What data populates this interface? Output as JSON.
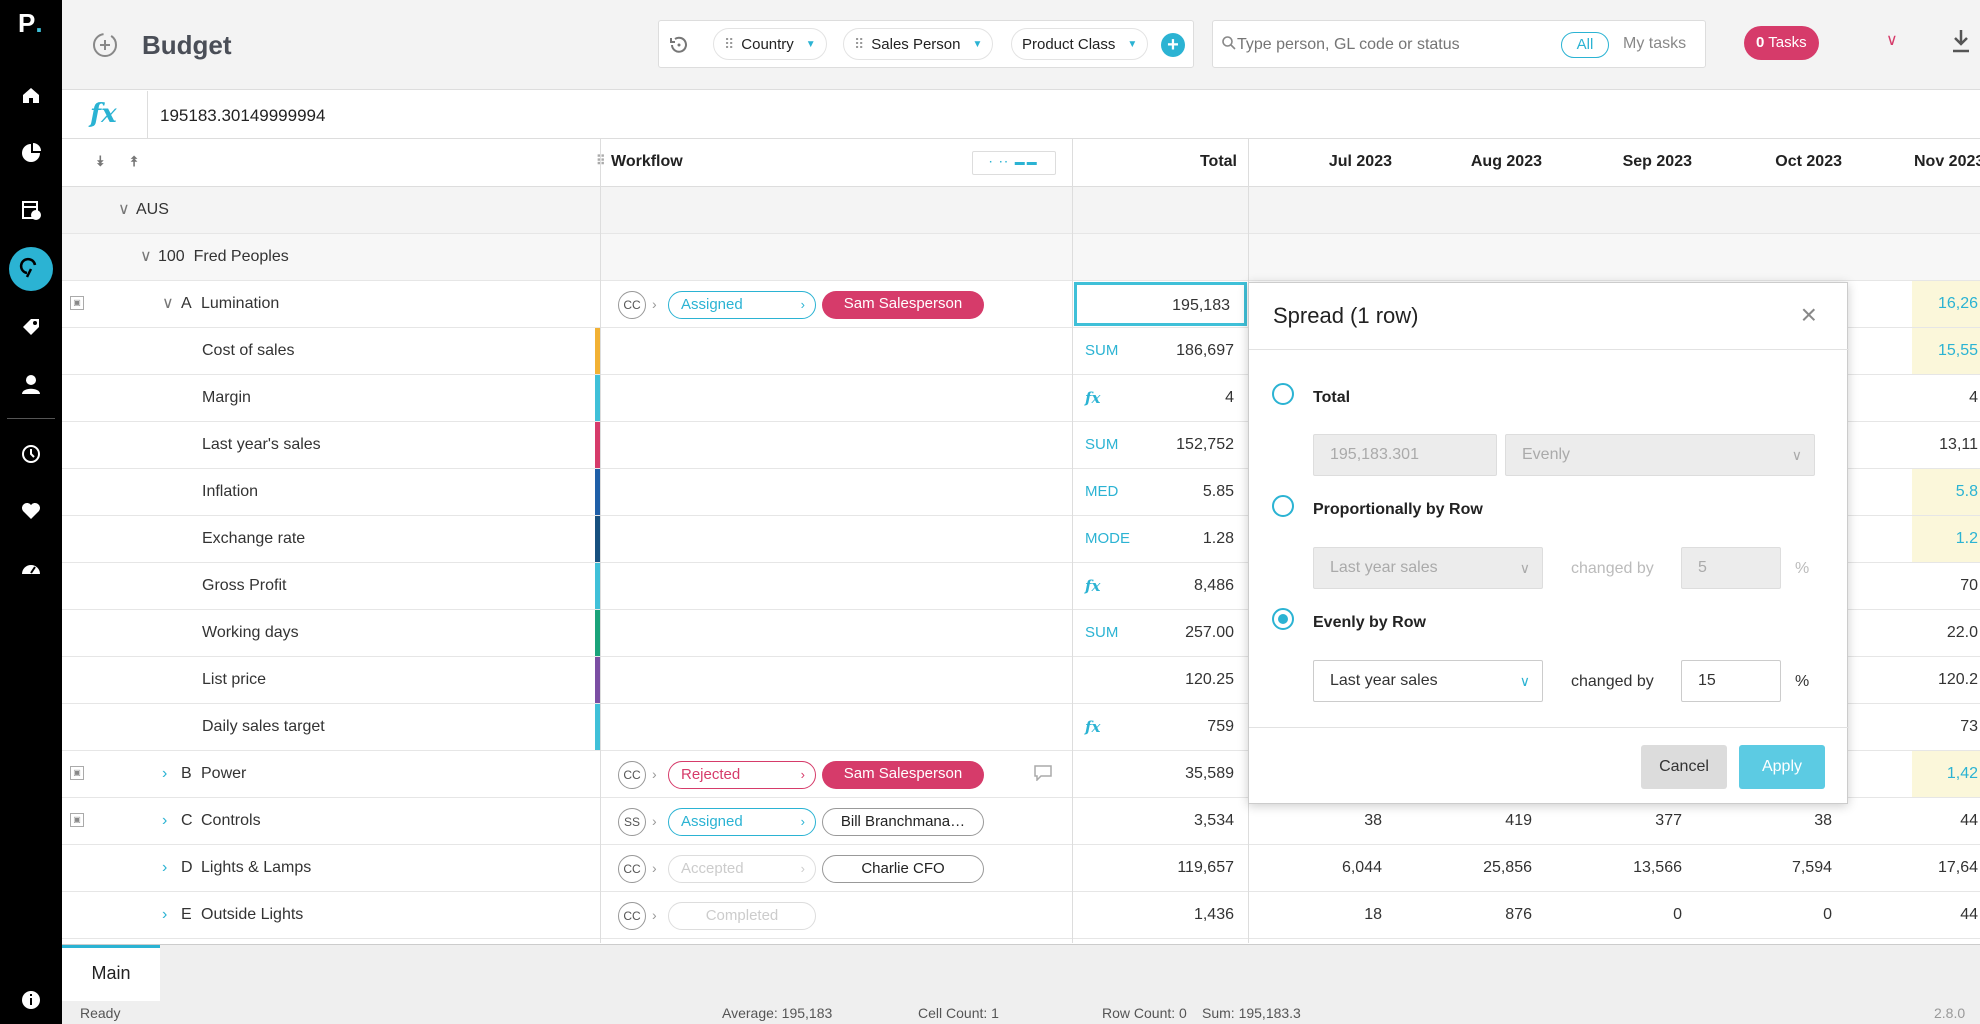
{
  "app": {
    "logo_letter": "P",
    "logo_dot": "."
  },
  "header": {
    "title": "Budget",
    "filters": [
      "Country",
      "Sales Person",
      "Product Class"
    ],
    "search_placeholder": "Type person, GL code or status",
    "all_label": "All",
    "my_tasks_label": "My tasks",
    "tasks_count": "0",
    "tasks_label": "Tasks"
  },
  "formula_bar": {
    "label": "fx",
    "value": "195183.30149999994"
  },
  "grid": {
    "workflow_header": "Workflow",
    "total_header": "Total",
    "months": [
      "Jul 2023",
      "Aug 2023",
      "Sep 2023",
      "Oct 2023",
      "Nov 2023"
    ],
    "groups": [
      {
        "label": "AUS"
      },
      {
        "label": "100  Fred Peoples"
      }
    ],
    "rows": [
      {
        "code": "A",
        "label": "Lumination",
        "agg": "",
        "total": "195,183",
        "cc": "CC",
        "status": "Assigned",
        "person": "Sam Salesperson",
        "nov": "16,26"
      },
      {
        "label": "Cost of sales",
        "agg": "SUM",
        "total": "186,697",
        "bar": "#f2b134",
        "nov": "15,55"
      },
      {
        "label": "Margin",
        "agg": "fx",
        "total": "4",
        "bar": "#3fc0d8",
        "nov": "4"
      },
      {
        "label": "Last year's sales",
        "agg": "SUM",
        "total": "152,752",
        "bar": "#d63b6a",
        "nov": "13,11"
      },
      {
        "label": "Inflation",
        "agg": "MED",
        "total": "5.85",
        "bar": "#1f5fa8",
        "nov": "5.8"
      },
      {
        "label": "Exchange rate",
        "agg": "MODE",
        "total": "1.28",
        "bar": "#17507f",
        "nov": "1.2"
      },
      {
        "label": "Gross Profit",
        "agg": "fx",
        "total": "8,486",
        "bar": "#3fc0d8",
        "nov": "70"
      },
      {
        "label": "Working days",
        "agg": "SUM",
        "total": "257.00",
        "bar": "#1aa37a",
        "nov": "22.0"
      },
      {
        "label": "List price",
        "agg": "",
        "total": "120.25",
        "bar": "#7b4ea3",
        "nov": "120.2"
      },
      {
        "label": "Daily sales target",
        "agg": "fx",
        "total": "759",
        "bar": "#3fc0d8",
        "nov": "73"
      },
      {
        "code": "B",
        "label": "Power",
        "total": "35,589",
        "cc": "CC",
        "status": "Rejected",
        "person": "Sam Salesperson",
        "nov": "1,42"
      },
      {
        "code": "C",
        "label": "Controls",
        "total": "3,534",
        "cc": "SS",
        "status": "Assigned",
        "person": "Bill Branchmana…",
        "jul": "38",
        "aug": "419",
        "sep": "377",
        "oct": "38",
        "nov": "44"
      },
      {
        "code": "D",
        "label": "Lights & Lamps",
        "total": "119,657",
        "cc": "CC",
        "status": "Accepted",
        "person": "Charlie CFO",
        "jul": "6,044",
        "aug": "25,856",
        "sep": "13,566",
        "oct": "7,594",
        "nov": "17,64"
      },
      {
        "code": "E",
        "label": "Outside Lights",
        "total": "1,436",
        "cc": "CC",
        "status": "Completed",
        "person": "",
        "jul": "18",
        "aug": "876",
        "sep": "0",
        "oct": "0",
        "nov": "44"
      }
    ]
  },
  "dialog": {
    "title": "Spread (1 row)",
    "opt_total": "Total",
    "total_value": "195,183.301",
    "total_method": "Evenly",
    "opt_prop": "Proportionally by Row",
    "prop_basis": "Last year sales",
    "changed_by": "changed by",
    "prop_value": "5",
    "pct": "%",
    "opt_even": "Evenly by Row",
    "even_basis": "Last year sales",
    "even_value": "15",
    "cancel": "Cancel",
    "apply": "Apply",
    "selected": "Evenly by Row"
  },
  "footer": {
    "tab": "Main",
    "ready": "Ready",
    "average": "Average: 195,183",
    "cell_count": "Cell Count: 1",
    "row_count": "Row Count: 0",
    "sum": "Sum: 195,183.3",
    "version": "2.8.0"
  },
  "colors": {
    "accent": "#2bb3d3",
    "danger": "#d63b6a",
    "highlight": "#fbf7da"
  }
}
